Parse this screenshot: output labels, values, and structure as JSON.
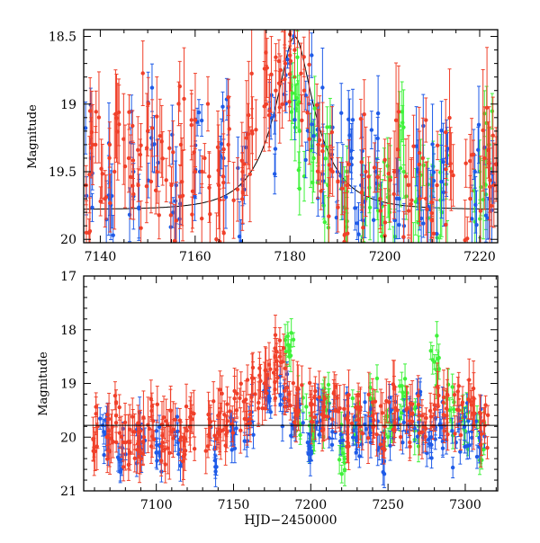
{
  "colors": {
    "red": "#f0402a",
    "blue": "#1f5be8",
    "green": "#3ef23a",
    "model": "#000000",
    "axis": "#000000"
  },
  "chart_data": [
    {
      "type": "scatter",
      "title": "",
      "xlabel": "",
      "ylabel": "Magnitude",
      "xlim": [
        7136.5,
        7223.8
      ],
      "ylim": [
        20.025,
        18.45
      ],
      "y_inverted": true,
      "xticks": [
        7140,
        7160,
        7180,
        7200,
        7220
      ],
      "xtick_labels": [
        "7140",
        "7160",
        "7180",
        "7200",
        "7220"
      ],
      "yticks": [
        18.5,
        19,
        19.5,
        20
      ],
      "ytick_labels": [
        "18.5",
        "19",
        "19.5",
        "20"
      ],
      "model": {
        "t0": 7181,
        "u0": 0.32,
        "tE": 9,
        "baseline": 19.78
      },
      "series": [
        {
          "name": "red",
          "color_key": "red",
          "points": [
            [
              7137,
              19.6,
              0.2
            ],
            [
              7139,
              19.3,
              0.25
            ],
            [
              7141,
              19.7,
              0.2
            ],
            [
              7143,
              19.5,
              0.3
            ],
            [
              7146,
              19.4,
              0.25
            ],
            [
              7148,
              19.6,
              0.2
            ],
            [
              7150,
              19.2,
              0.3
            ],
            [
              7152,
              19.5,
              0.25
            ],
            [
              7155,
              19.6,
              0.2
            ],
            [
              7157,
              19.3,
              0.3
            ],
            [
              7160,
              19.5,
              0.25
            ],
            [
              7162,
              19.4,
              0.2
            ],
            [
              7165,
              19.6,
              0.3
            ],
            [
              7167,
              19.3,
              0.25
            ],
            [
              7170,
              19.5,
              0.2
            ],
            [
              7172,
              19.2,
              0.3
            ],
            [
              7175,
              19.0,
              0.25
            ],
            [
              7177,
              18.9,
              0.2
            ],
            [
              7179,
              18.7,
              0.2
            ],
            [
              7181,
              18.6,
              0.15
            ],
            [
              7183,
              18.9,
              0.2
            ],
            [
              7186,
              19.3,
              0.25
            ],
            [
              7189,
              19.5,
              0.2
            ],
            [
              7192,
              19.6,
              0.3
            ],
            [
              7196,
              19.5,
              0.25
            ],
            [
              7199,
              19.7,
              0.2
            ],
            [
              7202,
              19.5,
              0.3
            ],
            [
              7205,
              19.6,
              0.25
            ],
            [
              7208,
              19.4,
              0.3
            ],
            [
              7211,
              19.6,
              0.2
            ],
            [
              7214,
              19.5,
              0.25
            ],
            [
              7218,
              19.7,
              0.2
            ],
            [
              7221,
              19.4,
              0.3
            ],
            [
              7223,
              19.6,
              0.25
            ]
          ]
        },
        {
          "name": "blue",
          "color_key": "blue",
          "points": [
            [
              7138,
              19.4,
              0.15
            ],
            [
              7142,
              19.7,
              0.2
            ],
            [
              7147,
              19.5,
              0.2
            ],
            [
              7151,
              19.3,
              0.15
            ],
            [
              7156,
              19.6,
              0.2
            ],
            [
              7161,
              19.5,
              0.15
            ],
            [
              7166,
              19.4,
              0.2
            ],
            [
              7170,
              19.6,
              0.2
            ],
            [
              7176,
              19.1,
              0.15
            ],
            [
              7180,
              18.7,
              0.1
            ],
            [
              7184,
              19.0,
              0.15
            ],
            [
              7187,
              19.3,
              0.2
            ],
            [
              7190,
              19.5,
              0.2
            ],
            [
              7193,
              19.4,
              0.2
            ],
            [
              7195,
              19.6,
              0.2
            ],
            [
              7198,
              19.5,
              0.2
            ],
            [
              7203,
              19.7,
              0.2
            ],
            [
              7207,
              19.5,
              0.2
            ],
            [
              7210,
              19.6,
              0.2
            ],
            [
              7213,
              19.4,
              0.2
            ],
            [
              7219,
              19.5,
              0.2
            ],
            [
              7222,
              19.7,
              0.2
            ]
          ]
        },
        {
          "name": "green",
          "color_key": "green",
          "points": [
            [
              7181,
              18.8,
              0.15
            ],
            [
              7182,
              19.2,
              0.2
            ],
            [
              7185,
              19.4,
              0.2
            ],
            [
              7188,
              19.6,
              0.2
            ],
            [
              7192,
              19.5,
              0.2
            ],
            [
              7196,
              19.7,
              0.2
            ],
            [
              7199,
              19.6,
              0.2
            ],
            [
              7201,
              19.8,
              0.2
            ],
            [
              7204,
              19.5,
              0.2
            ],
            [
              7207,
              19.7,
              0.2
            ],
            [
              7210,
              19.6,
              0.2
            ],
            [
              7212,
              19.8,
              0.2
            ],
            [
              7220,
              19.5,
              0.2
            ],
            [
              7222,
              19.3,
              0.2
            ]
          ]
        }
      ]
    },
    {
      "type": "scatter",
      "title": "",
      "xlabel": "HJD−2450000",
      "ylabel": "Magnitude",
      "xlim": [
        7053,
        7321
      ],
      "ylim": [
        21,
        17
      ],
      "y_inverted": true,
      "xticks": [
        7100,
        7150,
        7200,
        7250,
        7300
      ],
      "xtick_labels": [
        "7100",
        "7150",
        "7200",
        "7250",
        "7300"
      ],
      "yticks": [
        17,
        18,
        19,
        20,
        21
      ],
      "ytick_labels": [
        "17",
        "18",
        "19",
        "20",
        "21"
      ],
      "baseline": 19.78,
      "series": [
        {
          "name": "red",
          "color_key": "red",
          "points": [
            [
              7062,
              19.8,
              0.3
            ],
            [
              7068,
              20.0,
              0.35
            ],
            [
              7074,
              19.6,
              0.3
            ],
            [
              7080,
              20.1,
              0.35
            ],
            [
              7086,
              19.9,
              0.3
            ],
            [
              7092,
              20.0,
              0.35
            ],
            [
              7098,
              19.7,
              0.3
            ],
            [
              7104,
              20.1,
              0.3
            ],
            [
              7110,
              19.9,
              0.35
            ],
            [
              7116,
              20.0,
              0.3
            ],
            [
              7122,
              19.8,
              0.35
            ],
            [
              7135,
              19.8,
              0.3
            ],
            [
              7140,
              19.6,
              0.35
            ],
            [
              7146,
              19.7,
              0.3
            ],
            [
              7152,
              19.5,
              0.3
            ],
            [
              7158,
              19.3,
              0.3
            ],
            [
              7164,
              19.2,
              0.3
            ],
            [
              7170,
              19.0,
              0.3
            ],
            [
              7176,
              18.8,
              0.3
            ],
            [
              7180,
              18.5,
              0.25
            ],
            [
              7186,
              19.2,
              0.3
            ],
            [
              7192,
              19.5,
              0.35
            ],
            [
              7200,
              19.4,
              0.3
            ],
            [
              7208,
              19.6,
              0.35
            ],
            [
              7216,
              19.5,
              0.3
            ],
            [
              7224,
              19.7,
              0.35
            ],
            [
              7232,
              19.5,
              0.3
            ],
            [
              7240,
              19.6,
              0.35
            ],
            [
              7248,
              19.8,
              0.3
            ],
            [
              7256,
              19.5,
              0.35
            ],
            [
              7264,
              19.7,
              0.3
            ],
            [
              7272,
              19.6,
              0.35
            ],
            [
              7280,
              19.4,
              0.3
            ],
            [
              7288,
              19.6,
              0.35
            ],
            [
              7296,
              19.5,
              0.3
            ],
            [
              7304,
              19.4,
              0.35
            ],
            [
              7312,
              19.7,
              0.3
            ]
          ]
        },
        {
          "name": "blue",
          "color_key": "blue",
          "points": [
            [
              7066,
              19.9,
              0.2
            ],
            [
              7078,
              20.2,
              0.2
            ],
            [
              7090,
              20.0,
              0.2
            ],
            [
              7102,
              20.3,
              0.2
            ],
            [
              7114,
              20.1,
              0.2
            ],
            [
              7138,
              20.2,
              0.2
            ],
            [
              7150,
              19.9,
              0.2
            ],
            [
              7160,
              19.7,
              0.2
            ],
            [
              7172,
              19.3,
              0.2
            ],
            [
              7182,
              19.3,
              0.2
            ],
            [
              7190,
              19.8,
              0.2
            ],
            [
              7198,
              20.1,
              0.2
            ],
            [
              7206,
              19.7,
              0.2
            ],
            [
              7214,
              19.9,
              0.2
            ],
            [
              7222,
              19.6,
              0.2
            ],
            [
              7230,
              20.0,
              0.2
            ],
            [
              7238,
              19.8,
              0.2
            ],
            [
              7246,
              20.2,
              0.2
            ],
            [
              7254,
              19.7,
              0.2
            ],
            [
              7262,
              19.9,
              0.2
            ],
            [
              7270,
              19.6,
              0.2
            ],
            [
              7278,
              20.0,
              0.2
            ],
            [
              7286,
              19.8,
              0.2
            ],
            [
              7294,
              20.1,
              0.2
            ],
            [
              7302,
              19.7,
              0.2
            ],
            [
              7310,
              19.9,
              0.2
            ]
          ]
        },
        {
          "name": "green",
          "color_key": "green",
          "points": [
            [
              7186,
              18.5,
              0.2
            ],
            [
              7192,
              19.6,
              0.2
            ],
            [
              7200,
              19.8,
              0.2
            ],
            [
              7210,
              19.5,
              0.2
            ],
            [
              7220,
              20.2,
              0.2
            ],
            [
              7230,
              19.6,
              0.2
            ],
            [
              7240,
              19.4,
              0.2
            ],
            [
              7250,
              20.0,
              0.2
            ],
            [
              7260,
              19.3,
              0.2
            ],
            [
              7270,
              19.8,
              0.2
            ],
            [
              7280,
              18.6,
              0.2
            ],
            [
              7290,
              19.5,
              0.2
            ],
            [
              7300,
              19.9,
              0.2
            ],
            [
              7310,
              20.2,
              0.2
            ]
          ]
        }
      ]
    }
  ]
}
